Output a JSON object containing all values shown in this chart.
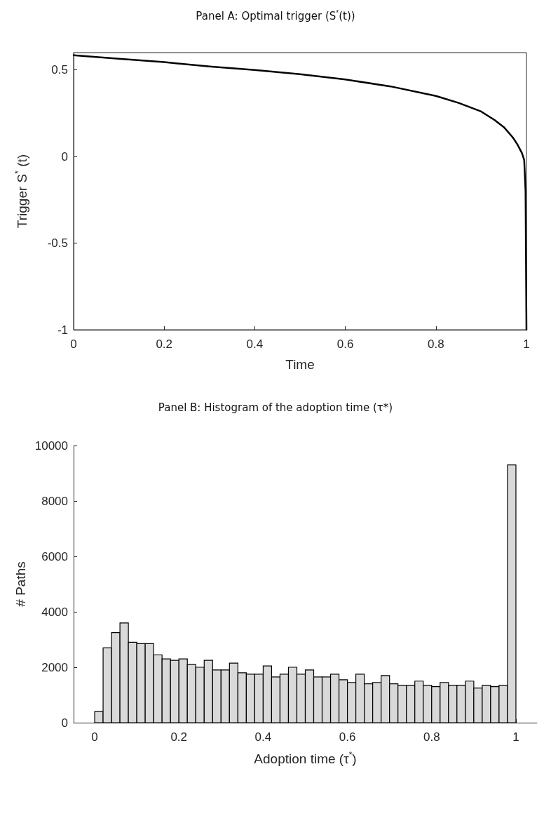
{
  "chart_data": [
    {
      "type": "line",
      "title": "Panel A: Optimal trigger (S$^{*}$(t))",
      "xlabel": "Time",
      "ylabel": "Trigger S$^{*}$ (t)",
      "xlim": [
        0,
        1
      ],
      "ylim": [
        -1,
        0.6
      ],
      "xticks": [
        0,
        0.2,
        0.4,
        0.6,
        0.8,
        1
      ],
      "yticks": [
        -1,
        -0.5,
        0,
        0.5
      ],
      "grid": false,
      "marker": "none",
      "line_style": "solid",
      "series": [
        {
          "color": "#000000",
          "x": [
            0,
            0.1,
            0.2,
            0.3,
            0.4,
            0.5,
            0.6,
            0.7,
            0.8,
            0.85,
            0.9,
            0.93,
            0.95,
            0.97,
            0.98,
            0.99,
            0.995,
            0.998,
            1
          ],
          "values": [
            0.585,
            0.565,
            0.545,
            0.52,
            0.5,
            0.475,
            0.445,
            0.405,
            0.35,
            0.31,
            0.26,
            0.21,
            0.17,
            0.11,
            0.07,
            0.02,
            -0.02,
            -0.2,
            -1
          ]
        }
      ]
    },
    {
      "type": "histogram",
      "title": "Panel B: Histogram of the adoption time (τ*)",
      "xlabel": "Adoption time (τ$^{*}$)",
      "ylabel": "# Paths",
      "xlim": [
        -0.05,
        1.05
      ],
      "ylim": [
        0,
        10000
      ],
      "xticks": [
        0,
        0.2,
        0.4,
        0.6,
        0.8,
        1
      ],
      "yticks": [
        0,
        2000,
        4000,
        6000,
        8000,
        10000
      ],
      "grid": false,
      "color": "#d9d9d9",
      "bins": [
        0,
        0.02,
        0.04,
        0.06,
        0.08,
        0.1,
        0.12,
        0.14,
        0.16,
        0.18,
        0.2,
        0.22,
        0.24,
        0.26,
        0.28,
        0.3,
        0.32,
        0.34,
        0.36,
        0.38,
        0.4,
        0.42,
        0.44,
        0.46,
        0.48,
        0.5,
        0.52,
        0.54,
        0.56,
        0.58,
        0.6,
        0.62,
        0.64,
        0.66,
        0.68,
        0.7,
        0.72,
        0.74,
        0.76,
        0.78,
        0.8,
        0.82,
        0.84,
        0.86,
        0.88,
        0.9,
        0.92,
        0.94,
        0.96,
        0.98,
        1
      ],
      "values": [
        400,
        2700,
        3250,
        3600,
        2900,
        2850,
        2850,
        2450,
        2300,
        2250,
        2300,
        2100,
        2000,
        2250,
        1900,
        1900,
        2150,
        1800,
        1750,
        1750,
        2050,
        1650,
        1750,
        2000,
        1750,
        1900,
        1650,
        1650,
        1750,
        1550,
        1450,
        1750,
        1400,
        1450,
        1700,
        1400,
        1350,
        1350,
        1500,
        1350,
        1300,
        1450,
        1350,
        1350,
        1500,
        1250,
        1350,
        1300,
        1350,
        9300
      ]
    }
  ]
}
